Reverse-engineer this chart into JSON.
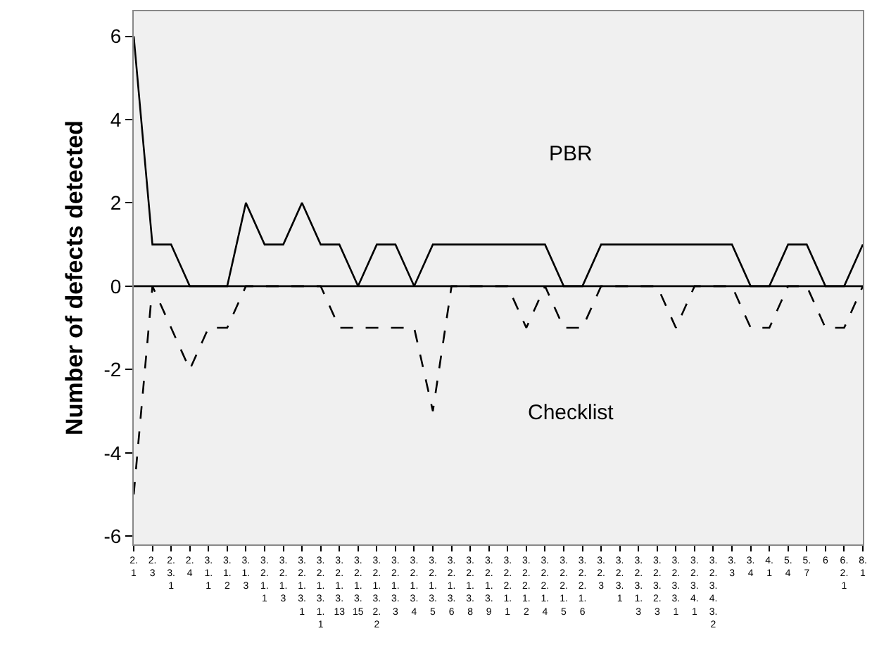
{
  "chart_data": {
    "type": "line",
    "ylabel": "Number of defects detected",
    "categories": [
      "2.1",
      "2.3",
      "2.3.1",
      "2.4",
      "3.1.1",
      "3.1.2",
      "3.1.3",
      "3.2.1.1",
      "3.2.1.3",
      "3.2.1.3.1",
      "3.2.1.3.1.1",
      "3.2.1.3.13",
      "3.2.1.3.15",
      "3.2.1.3.2.2",
      "3.2.1.3.3",
      "3.2.1.3.4",
      "3.2.1.3.5",
      "3.2.1.3.6",
      "3.2.1.3.8",
      "3.2.1.3.9",
      "3.2.2.1.1",
      "3.2.2.1.2",
      "3.2.2.1.4",
      "3.2.2.1.5",
      "3.2.2.1.6",
      "3.2.3",
      "3.2.3.1",
      "3.2.3.1.3",
      "3.2.3.2.3",
      "3.2.3.3.1",
      "3.2.3.4.1",
      "3.2.3.4.3.2",
      "3.3",
      "3.4",
      "4.1",
      "5.4",
      "5.7",
      "6",
      "6.2.1",
      "8.1"
    ],
    "series": [
      {
        "color": "#000000",
        "line_style": "solid",
        "values": [
          6,
          1,
          1,
          0,
          0,
          0,
          2,
          1,
          1,
          2,
          1,
          1,
          0,
          1,
          1,
          0,
          1,
          1,
          1,
          1,
          1,
          1,
          1,
          0,
          0,
          1,
          1,
          1,
          1,
          1,
          1,
          1,
          1,
          0,
          0,
          1,
          1,
          0,
          0,
          1
        ]
      },
      {
        "color": "#000000",
        "line_style": "dashed",
        "values": [
          -5,
          0,
          -1,
          -2,
          -1,
          -1,
          0,
          0,
          0,
          0,
          0,
          -1,
          -1,
          -1,
          -1,
          -1,
          -3,
          0,
          0,
          0,
          0,
          -1,
          0,
          -1,
          -1,
          0,
          0,
          0,
          0,
          -1,
          0,
          0,
          0,
          -1,
          -1,
          0,
          0,
          -1,
          -1,
          0
        ]
      }
    ],
    "annotations": [
      "PBR",
      "Checklist"
    ],
    "ylim": [
      -6.2,
      6.6
    ],
    "yticks": [
      -6,
      -4,
      -2,
      0,
      2,
      4,
      6
    ],
    "ref_lines": [
      {
        "axis": "y",
        "value": 0,
        "color": "#000000",
        "line_style": "solid"
      }
    ],
    "grid": false,
    "marker": "none"
  }
}
